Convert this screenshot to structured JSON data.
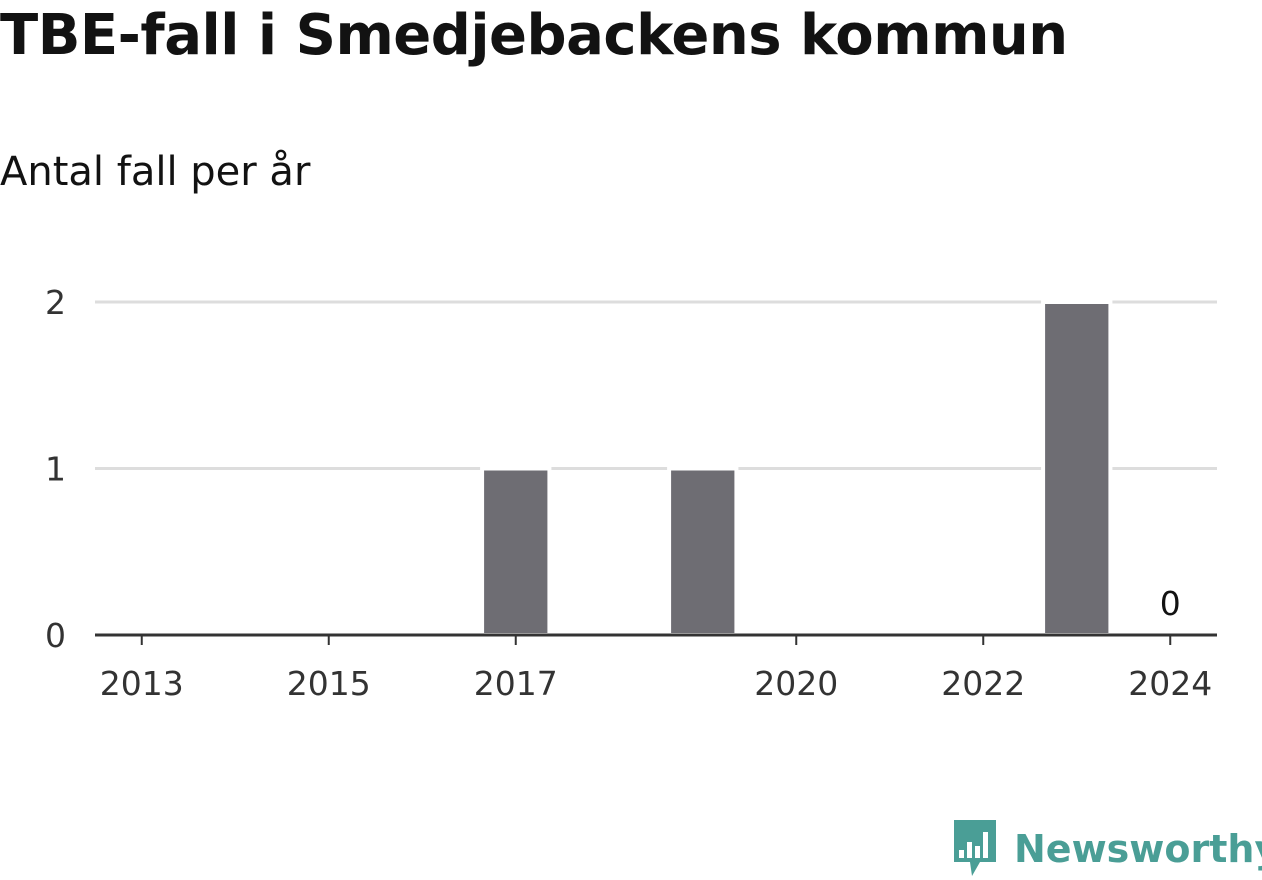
{
  "title": "TBE-fall i Smedjebackens kommun",
  "subtitle": "Antal fall per år",
  "brand": {
    "name": "Newsworthy",
    "icon": "bar-chart-speech-bubble-icon",
    "color": "#4a9e96"
  },
  "colors": {
    "bar": "#6e6d73",
    "grid": "#dddddd",
    "axis": "#333333",
    "text": "#333333"
  },
  "chart_data": {
    "type": "bar",
    "title": "TBE-fall i Smedjebackens kommun",
    "subtitle": "Antal fall per år",
    "xlabel": "",
    "ylabel": "",
    "categories": [
      "2013",
      "2014",
      "2015",
      "2016",
      "2017",
      "2018",
      "2019",
      "2020",
      "2021",
      "2022",
      "2023",
      "2024"
    ],
    "values": [
      0,
      0,
      0,
      0,
      1,
      0,
      1,
      0,
      0,
      0,
      2,
      0
    ],
    "x_tick_labels": [
      "2013",
      "2015",
      "2017",
      "2020",
      "2022",
      "2024"
    ],
    "y_ticks": [
      0,
      1,
      2
    ],
    "ylim": [
      0,
      2
    ],
    "grid": true,
    "data_labels": [
      {
        "category": "2024",
        "text": "0"
      }
    ]
  }
}
